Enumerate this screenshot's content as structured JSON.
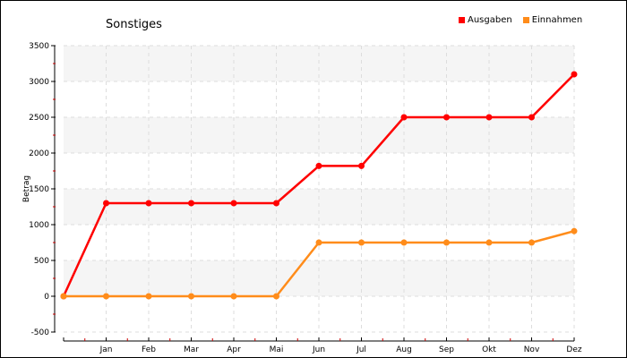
{
  "chart_data": {
    "type": "line",
    "title": "Sonstiges",
    "xlabel": "",
    "ylabel": "Betrag",
    "categories": [
      "",
      "Jan",
      "Feb",
      "Mar",
      "Apr",
      "Mai",
      "Jun",
      "Jul",
      "Aug",
      "Sep",
      "Okt",
      "Nov",
      "Dez"
    ],
    "ylim": [
      -500,
      3500
    ],
    "yticks": [
      -500,
      0,
      500,
      1000,
      1500,
      2000,
      2500,
      3000,
      3500
    ],
    "grid": true,
    "legend_position": "top-right",
    "series": [
      {
        "name": "Ausgaben",
        "color": "#ff0000",
        "values": [
          0,
          1300,
          1300,
          1300,
          1300,
          1300,
          1820,
          1820,
          2500,
          2500,
          2500,
          2500,
          3100
        ]
      },
      {
        "name": "Einnahmen",
        "color": "#ff8c1a",
        "values": [
          0,
          0,
          0,
          0,
          0,
          0,
          750,
          750,
          750,
          750,
          750,
          750,
          910
        ]
      }
    ]
  }
}
